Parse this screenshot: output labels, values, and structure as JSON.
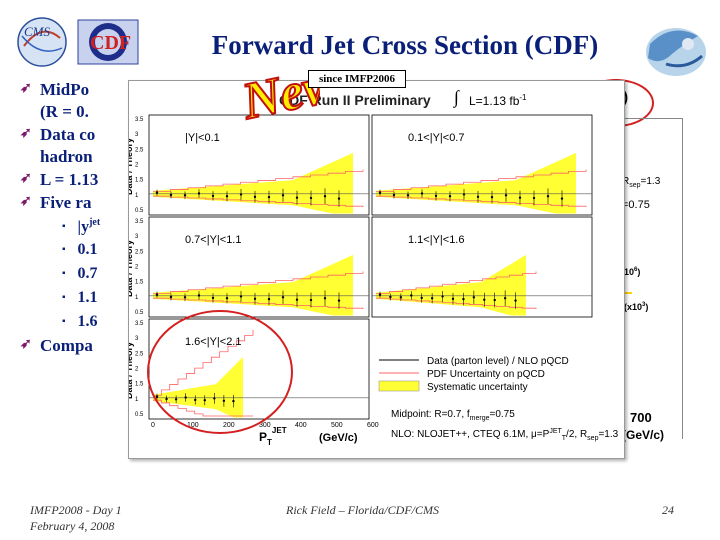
{
  "slide": {
    "title": "Forward Jet Cross Section (CDF)",
    "since_label": "since IMFP2006",
    "new_stamp": "New"
  },
  "bullets": [
    {
      "text": "MidPo",
      "cont": "(R = 0."
    },
    {
      "text": "Data co",
      "cont": "hadron"
    },
    {
      "text": "L = 1.13"
    },
    {
      "text": "Five ra"
    },
    {
      "text": "Compa"
    }
  ],
  "sub_bullets": [
    "|y",
    "0.1",
    "0.7",
    "1.1",
    "1.6"
  ],
  "sub_bullet_superscript": "jet",
  "plot": {
    "header": "CDF Run II Preliminary",
    "lumi": "L=1.13 fb",
    "lumi_sup": "-1",
    "ylabel": "Data / Theory",
    "xlabel": "P",
    "xlabel_sub": "T",
    "xlabel_sup": "JET",
    "xunit": "(GeV/c)",
    "panels": [
      {
        "label": "|Y|<0.1"
      },
      {
        "label": "0.1<|Y|<0.7"
      },
      {
        "label": "0.7<|Y|<1.1"
      },
      {
        "label": "1.1<|Y|<1.6"
      },
      {
        "label": "1.6<|Y|<2.1"
      }
    ],
    "y_ticks": [
      "0.5",
      "1",
      "1.5",
      "2",
      "2.5",
      "3",
      "3.5"
    ],
    "x_ticks": [
      "0",
      "100",
      "200",
      "300",
      "400",
      "500",
      "600"
    ],
    "legend": [
      {
        "label": "Data (parton level) / NLO pQCD"
      },
      {
        "label": "PDF Uncertainty on pQCD"
      },
      {
        "label": "Systematic uncertainty"
      }
    ],
    "midpoint_text": "Midpoint: R=0.7, f",
    "midpoint_sub": "merge",
    "midpoint_end": "=0.75",
    "nlo_text": "NLO: NLOJET++, CTEQ 6.1M, μ=P",
    "nlo_sub": "T",
    "nlo_sup": "JET",
    "nlo_end": "/2, R",
    "nlo_sub2": "sep",
    "nlo_end2": "=1.3",
    "behind": {
      "fb": "fb",
      "fb_sup": "-1",
      "rsep": "R",
      "rsep_sub": "sep",
      "rsep_val": "=1.3",
      "eq075": "=0.75",
      "x10_6": "10",
      "x10_6_sup": "6",
      "x10_3": "(x10",
      "x10_3_sup": "3",
      "x700": "700",
      "gev": "(GeV/c)"
    }
  },
  "footer": {
    "conf": "IMFP2008 - Day 1",
    "date": "February 4, 2008",
    "author": "Rick Field – Florida/CDF/CMS",
    "page": "24"
  },
  "colors": {
    "title": "#0a1f78",
    "accent": "#7a1a6a",
    "band": "#ffff33",
    "pdf_line": "#ff6666",
    "circle": "#d42020"
  },
  "logos": [
    "CMS",
    "CDF"
  ]
}
